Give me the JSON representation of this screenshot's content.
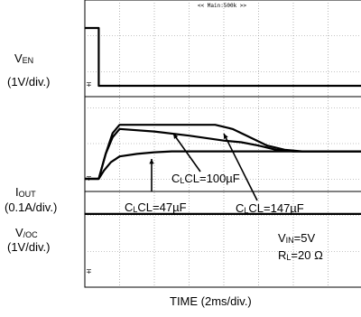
{
  "header": {
    "timebase": "<< Main:500k >>"
  },
  "channels": {
    "en": {
      "name_main": "V",
      "name_sub": "EN",
      "scale": "(1V/div.)"
    },
    "out": {
      "name_main": "I",
      "name_sub": "OUT",
      "scale": "(0.1A/div.)"
    },
    "oc": {
      "name_main": "V",
      "name_sub": "/OC",
      "scale": "(1V/div.)"
    }
  },
  "conditions": {
    "vin": {
      "main": "V",
      "sub": "IN",
      "value": "=5V"
    },
    "rl": {
      "main": "R",
      "sub": "L",
      "value": "=20 Ω"
    }
  },
  "x_axis_label": "TIME (2ms/div.)",
  "chart_data": {
    "type": "line",
    "title": "",
    "xlabel": "TIME (2ms/div.)",
    "x_unit": "ms",
    "xlim": [
      0,
      16
    ],
    "series": [
      {
        "name": "VEN",
        "scale": "1V/div.",
        "x": [
          0,
          0.8,
          0.8,
          16
        ],
        "y": [
          4.0,
          4.0,
          0,
          0
        ]
      },
      {
        "name": "IOUT CL=47µF",
        "scale": "0.1A/div.",
        "x": [
          0,
          0.8,
          1.1,
          1.5,
          2.0,
          3.0,
          4.0,
          5.0,
          6.0,
          7.0,
          8.0,
          9.0,
          10.0,
          12.0,
          16.0
        ],
        "y": [
          0,
          0,
          0.1,
          0.2,
          0.27,
          0.3,
          0.32,
          0.33,
          0.33,
          0.33,
          0.33,
          0.33,
          0.33,
          0.33,
          0.33
        ]
      },
      {
        "name": "IOUT CL=100µF",
        "scale": "0.1A/div.",
        "x": [
          0,
          0.8,
          1.2,
          1.6,
          2.0,
          4.0,
          6.0,
          8.0,
          9.0,
          10.0,
          11.0,
          12.0,
          16.0
        ],
        "y": [
          0,
          0,
          0.3,
          0.5,
          0.6,
          0.57,
          0.52,
          0.46,
          0.44,
          0.4,
          0.35,
          0.33,
          0.33
        ]
      },
      {
        "name": "IOUT CL=147µF",
        "scale": "0.1A/div.",
        "x": [
          0,
          0.8,
          1.2,
          1.6,
          2.0,
          4.0,
          6.0,
          7.5,
          8.5,
          9.5,
          10.5,
          11.5,
          12.5,
          16.0
        ],
        "y": [
          0,
          0,
          0.3,
          0.55,
          0.65,
          0.65,
          0.65,
          0.65,
          0.6,
          0.5,
          0.4,
          0.35,
          0.33,
          0.33
        ]
      },
      {
        "name": "V/OC",
        "scale": "1V/div.",
        "x": [
          0,
          16
        ],
        "y": [
          4.5,
          4.5
        ]
      }
    ],
    "annotations": [
      "CL=47µF",
      "CL=100µF",
      "CL=147µF"
    ]
  }
}
